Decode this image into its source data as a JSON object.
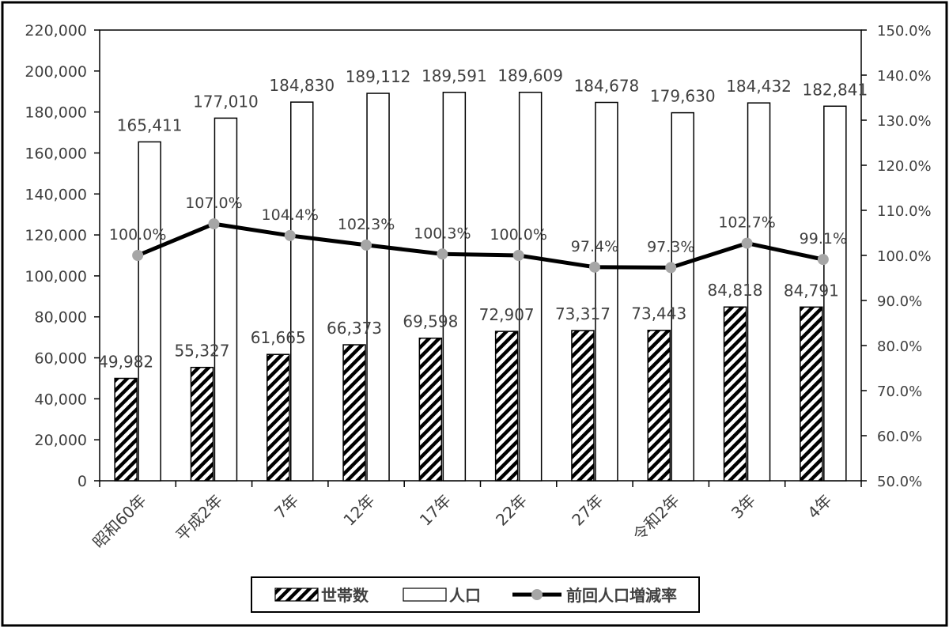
{
  "chart_data": {
    "type": "bar",
    "categories": [
      "昭和60年",
      "平成2年",
      "7年",
      "12年",
      "17年",
      "22年",
      "27年",
      "令和2年",
      "3年",
      "4年"
    ],
    "series": [
      {
        "name": "世帯数",
        "kind": "bar",
        "fill": "hatched",
        "axis": "left",
        "values": [
          49982,
          55327,
          61665,
          66373,
          69598,
          72907,
          73317,
          73443,
          84818,
          84791
        ],
        "labels": [
          "49,982",
          "55,327",
          "61,665",
          "66,373",
          "69,598",
          "72,907",
          "73,317",
          "73,443",
          "84,818",
          "84,791"
        ]
      },
      {
        "name": "人口",
        "kind": "bar",
        "fill": "white",
        "axis": "left",
        "values": [
          165411,
          177010,
          184830,
          189112,
          189591,
          189609,
          184678,
          179630,
          184432,
          182841
        ],
        "labels": [
          "165,411",
          "177,010",
          "184,830",
          "189,112",
          "189,591",
          "189,609",
          "184,678",
          "179,630",
          "184,432",
          "182,841"
        ]
      },
      {
        "name": "前回人口増減率",
        "kind": "line",
        "axis": "right",
        "color": "#000000",
        "marker_color": "#a6a6a6",
        "values": [
          100.0,
          107.0,
          104.4,
          102.3,
          100.3,
          100.0,
          97.4,
          97.3,
          102.7,
          99.1
        ],
        "labels": [
          "100.0%",
          "107.0%",
          "104.4%",
          "102.3%",
          "100.3%",
          "100.0%",
          "97.4%",
          "97.3%",
          "102.7%",
          "99.1%"
        ]
      }
    ],
    "y_left": {
      "min": 0,
      "max": 220000,
      "ticks": [
        "0",
        "20,000",
        "40,000",
        "60,000",
        "80,000",
        "100,000",
        "120,000",
        "140,000",
        "160,000",
        "180,000",
        "200,000",
        "220,000"
      ]
    },
    "y_right": {
      "min": 50,
      "max": 150,
      "ticks": [
        "50.0%",
        "60.0%",
        "70.0%",
        "80.0%",
        "90.0%",
        "100.0%",
        "110.0%",
        "120.0%",
        "130.0%",
        "140.0%",
        "150.0%"
      ]
    },
    "grid": false,
    "legend_position": "bottom",
    "title": "",
    "xlabel": "",
    "ylabel": ""
  }
}
